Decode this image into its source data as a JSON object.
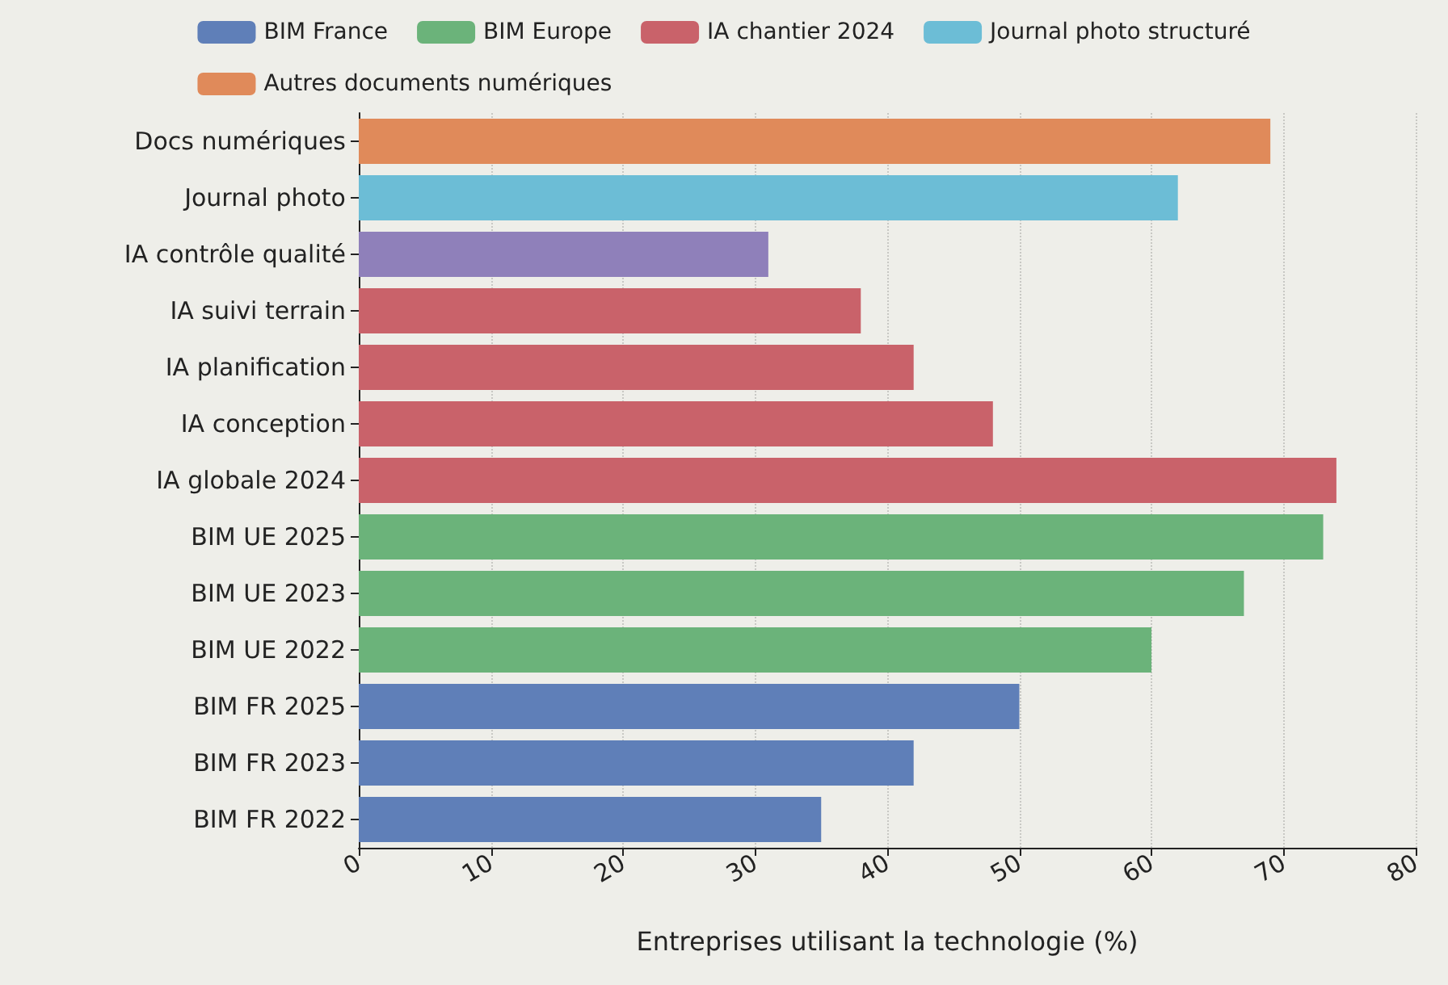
{
  "chart_data": {
    "type": "bar",
    "orientation": "horizontal",
    "stacked": true,
    "categories": [
      "Docs numériques",
      "Journal photo",
      "IA contrôle qualité",
      "IA suivi terrain",
      "IA planification",
      "IA conception",
      "IA globale 2024",
      "BIM UE 2025",
      "BIM UE 2023",
      "BIM UE 2022",
      "BIM FR 2025",
      "BIM FR 2023",
      "BIM FR 2022"
    ],
    "series": [
      {
        "name": "BIM France",
        "color": "#5f7fb8",
        "values": [
          null,
          null,
          null,
          null,
          null,
          null,
          null,
          null,
          null,
          null,
          50,
          42,
          35
        ]
      },
      {
        "name": "BIM Europe",
        "color": "#6bb37a",
        "values": [
          null,
          null,
          null,
          null,
          null,
          null,
          null,
          73,
          67,
          60,
          null,
          null,
          null
        ]
      },
      {
        "name": "IA chantier 2024",
        "color": "#c9626a",
        "values": [
          null,
          null,
          null,
          38,
          42,
          48,
          74,
          null,
          null,
          null,
          null,
          null,
          null
        ]
      },
      {
        "name": "Journal photo structuré",
        "color": "#6cbdd6",
        "values": [
          null,
          62,
          null,
          null,
          null,
          null,
          null,
          null,
          null,
          null,
          null,
          null,
          null
        ]
      },
      {
        "name": "Autres documents numériques",
        "color": "#e08a5a",
        "values": [
          69,
          null,
          null,
          null,
          null,
          null,
          null,
          null,
          null,
          null,
          null,
          null,
          null
        ]
      },
      {
        "color": "#8f80ba",
        "values": [
          null,
          null,
          31,
          null,
          null,
          null,
          null,
          null,
          null,
          null,
          null,
          null,
          null
        ]
      }
    ],
    "xlabel": "Entreprises utilisant la technologie (%)",
    "xlim": [
      0,
      80
    ],
    "xticks": [
      0,
      10,
      20,
      30,
      40,
      50,
      60,
      70,
      80
    ],
    "grid": "x",
    "legend": "top"
  }
}
